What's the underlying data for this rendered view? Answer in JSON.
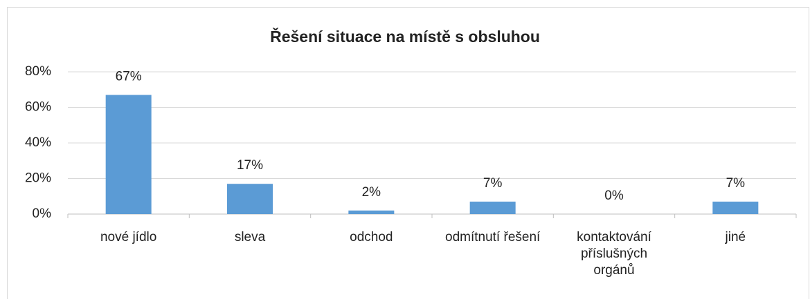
{
  "chart_data": {
    "type": "bar",
    "title": "Řešení situace na místě s obsluhou",
    "categories": [
      "nové jídlo",
      "sleva",
      "odchod",
      "odmítnutí řešení",
      "kontaktování příslušných orgánů",
      "jiné"
    ],
    "values": [
      67,
      17,
      2,
      7,
      0,
      7
    ],
    "value_labels": [
      "67%",
      "17%",
      "2%",
      "7%",
      "0%",
      "7%"
    ],
    "color": "#5b9bd5",
    "ylim": [
      0,
      80
    ],
    "yticks": [
      {
        "value": 0,
        "label": "0%"
      },
      {
        "value": 20,
        "label": "20%"
      },
      {
        "value": 40,
        "label": "40%"
      },
      {
        "value": 60,
        "label": "60%"
      },
      {
        "value": 80,
        "label": "80%"
      }
    ],
    "grid": true
  }
}
